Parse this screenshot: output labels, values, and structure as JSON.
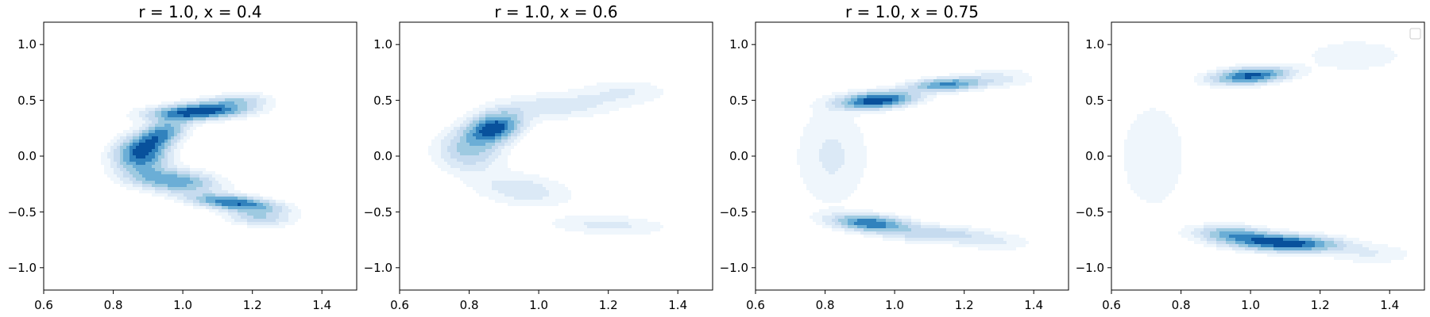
{
  "chart_data": [
    {
      "type": "contour",
      "title": "r = 1.0, x = 0.4",
      "xlim": [
        0.6,
        1.5
      ],
      "ylim": [
        -1.2,
        1.2
      ],
      "xticks": [
        0.6,
        0.8,
        1.0,
        1.2,
        1.4
      ],
      "yticks": [
        -1.0,
        -0.5,
        0.0,
        0.5,
        1.0
      ],
      "xtick_labels": [
        "0.6",
        "0.8",
        "1.0",
        "1.2",
        "1.4"
      ],
      "ytick_labels": [
        "−1.0",
        "−0.5",
        "0.0",
        "0.5",
        "1.0"
      ],
      "colormap": "Blues",
      "density_components": [
        {
          "x": 1.05,
          "y": 0.4,
          "sx": 0.09,
          "sy": 0.05,
          "rho": 0.3,
          "w": 1.0
        },
        {
          "x": 0.93,
          "y": 0.18,
          "sx": 0.05,
          "sy": 0.1,
          "rho": 0.55,
          "w": 0.75
        },
        {
          "x": 0.88,
          "y": 0.0,
          "sx": 0.05,
          "sy": 0.1,
          "rho": 0.0,
          "w": 0.75
        },
        {
          "x": 0.97,
          "y": -0.22,
          "sx": 0.08,
          "sy": 0.07,
          "rho": -0.3,
          "w": 0.65
        },
        {
          "x": 1.15,
          "y": -0.42,
          "sx": 0.08,
          "sy": 0.05,
          "rho": -0.5,
          "w": 0.85
        },
        {
          "x": 1.22,
          "y": -0.55,
          "sx": 0.06,
          "sy": 0.05,
          "rho": -0.2,
          "w": 0.35
        },
        {
          "x": 1.15,
          "y": 0.5,
          "sx": 0.06,
          "sy": 0.04,
          "rho": 0.2,
          "w": 0.3
        }
      ]
    },
    {
      "type": "contour",
      "title": "r = 1.0, x = 0.6",
      "xlim": [
        0.6,
        1.5
      ],
      "ylim": [
        -1.2,
        1.2
      ],
      "xticks": [
        0.6,
        0.8,
        1.0,
        1.2,
        1.4
      ],
      "yticks": [
        -1.0,
        -0.5,
        0.0,
        0.5,
        1.0
      ],
      "xtick_labels": [
        "0.6",
        "0.8",
        "1.0",
        "1.2",
        "1.4"
      ],
      "ytick_labels": [
        "−1.0",
        "−0.5",
        "0.0",
        "0.5",
        "1.0"
      ],
      "colormap": "Blues",
      "density_components": [
        {
          "x": 0.87,
          "y": 0.25,
          "sx": 0.05,
          "sy": 0.09,
          "rho": 0.3,
          "w": 1.0
        },
        {
          "x": 0.8,
          "y": 0.05,
          "sx": 0.06,
          "sy": 0.12,
          "rho": 0.0,
          "w": 0.4
        },
        {
          "x": 1.05,
          "y": 0.45,
          "sx": 0.12,
          "sy": 0.08,
          "rho": 0.2,
          "w": 0.22
        },
        {
          "x": 1.25,
          "y": 0.58,
          "sx": 0.08,
          "sy": 0.07,
          "rho": 0.0,
          "w": 0.14
        },
        {
          "x": 0.95,
          "y": -0.3,
          "sx": 0.09,
          "sy": 0.1,
          "rho": -0.3,
          "w": 0.22
        },
        {
          "x": 1.2,
          "y": -0.62,
          "sx": 0.11,
          "sy": 0.06,
          "rho": -0.2,
          "w": 0.18
        }
      ]
    },
    {
      "type": "contour",
      "title": "r = 1.0, x = 0.75",
      "xlim": [
        0.6,
        1.5
      ],
      "ylim": [
        -1.2,
        1.2
      ],
      "xticks": [
        0.6,
        0.8,
        1.0,
        1.2,
        1.4
      ],
      "yticks": [
        -1.0,
        -0.5,
        0.0,
        0.5,
        1.0
      ],
      "xtick_labels": [
        "0.6",
        "0.8",
        "1.0",
        "1.2",
        "1.4"
      ],
      "ytick_labels": [
        "−1.0",
        "−0.5",
        "0.0",
        "0.5",
        "1.0"
      ],
      "colormap": "Blues",
      "density_components": [
        {
          "x": 0.95,
          "y": 0.5,
          "sx": 0.07,
          "sy": 0.05,
          "rho": 0.3,
          "w": 1.0
        },
        {
          "x": 1.15,
          "y": 0.64,
          "sx": 0.07,
          "sy": 0.04,
          "rho": 0.3,
          "w": 0.7
        },
        {
          "x": 0.93,
          "y": -0.6,
          "sx": 0.07,
          "sy": 0.05,
          "rho": -0.3,
          "w": 0.8
        },
        {
          "x": 1.12,
          "y": -0.7,
          "sx": 0.1,
          "sy": 0.05,
          "rho": -0.2,
          "w": 0.35
        },
        {
          "x": 0.82,
          "y": 0.0,
          "sx": 0.07,
          "sy": 0.3,
          "rho": 0.0,
          "w": 0.16
        },
        {
          "x": 1.3,
          "y": 0.7,
          "sx": 0.07,
          "sy": 0.06,
          "rho": 0.0,
          "w": 0.15
        },
        {
          "x": 1.3,
          "y": -0.78,
          "sx": 0.07,
          "sy": 0.05,
          "rho": 0.0,
          "w": 0.12
        }
      ]
    },
    {
      "type": "contour",
      "title": "",
      "xlim": [
        0.6,
        1.5
      ],
      "ylim": [
        -1.2,
        1.2
      ],
      "xticks": [
        0.6,
        0.8,
        1.0,
        1.2,
        1.4
      ],
      "yticks": [
        -1.0,
        -0.5,
        0.0,
        0.5,
        1.0
      ],
      "xtick_labels": [
        "0.6",
        "0.8",
        "1.0",
        "1.2",
        "1.4"
      ],
      "ytick_labels": [
        "−1.0",
        "−0.5",
        "0.0",
        "0.5",
        "1.0"
      ],
      "colormap": "Blues",
      "legend": "top-right (empty)",
      "density_components": [
        {
          "x": 1.0,
          "y": 0.72,
          "sx": 0.07,
          "sy": 0.05,
          "rho": 0.3,
          "w": 1.0
        },
        {
          "x": 1.1,
          "y": -0.78,
          "sx": 0.1,
          "sy": 0.05,
          "rho": -0.2,
          "w": 1.1
        },
        {
          "x": 0.95,
          "y": -0.7,
          "sx": 0.07,
          "sy": 0.05,
          "rho": -0.2,
          "w": 0.6
        },
        {
          "x": 0.72,
          "y": 0.0,
          "sx": 0.07,
          "sy": 0.35,
          "rho": 0.0,
          "w": 0.14
        },
        {
          "x": 1.3,
          "y": 0.9,
          "sx": 0.1,
          "sy": 0.1,
          "rho": 0.0,
          "w": 0.14
        },
        {
          "x": 1.35,
          "y": -0.88,
          "sx": 0.08,
          "sy": 0.06,
          "rho": 0.0,
          "w": 0.15
        }
      ]
    }
  ]
}
